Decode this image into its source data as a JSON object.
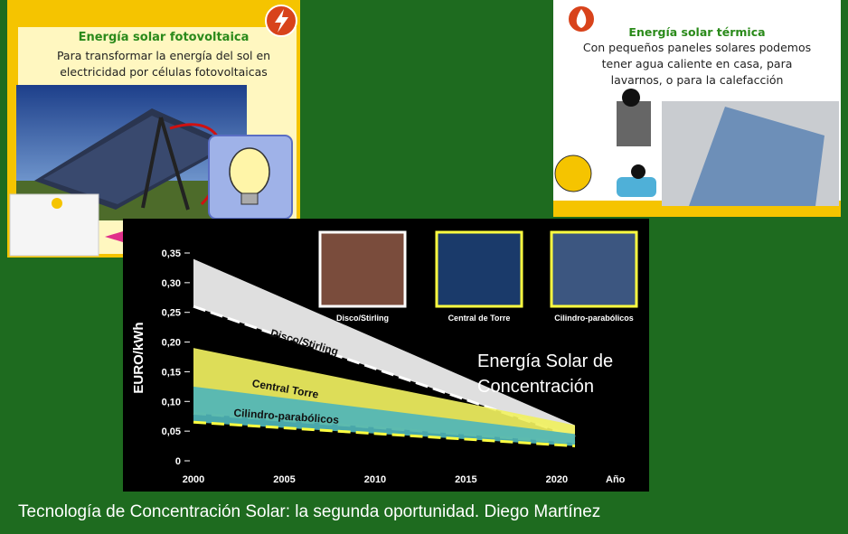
{
  "photovoltaic": {
    "title": "Energía solar fotovoltaica",
    "line1": "Para transformar la energía del sol en",
    "line2": "electricidad  por células fotovoltaicas",
    "icon": "lightning-icon"
  },
  "thermal": {
    "title": "Energía solar térmica",
    "line1": "Con pequeños paneles solares podemos",
    "line2": "tener agua caliente en casa, para",
    "line3": "lavarnos, o para la calefacción",
    "icon": "flame-icon"
  },
  "chart_data": {
    "type": "area",
    "ylabel": "EURO/kWh",
    "xlabel": "Año",
    "x_ticks": [
      "2000",
      "2005",
      "2010",
      "2015",
      "2020"
    ],
    "y_ticks": [
      "0",
      "0,05",
      "0,10",
      "0,15",
      "0,20",
      "0,25",
      "0,30",
      "0,35"
    ],
    "xlim": [
      2000,
      2021
    ],
    "ylim": [
      0,
      0.35
    ],
    "annotation_line1": "Energía Solar de",
    "annotation_line2": "Concentración",
    "thumbnails": [
      "Disco/Stirling",
      "Central de Torre",
      "Cilindro-parabólicos"
    ],
    "series": [
      {
        "name": "Disco/Stirling",
        "color": "#f2f2f2",
        "x": [
          2000,
          2021
        ],
        "upper": [
          0.34,
          0.06
        ],
        "lower": [
          0.26,
          0.04
        ]
      },
      {
        "name": "Central Torre",
        "color": "#f0f060",
        "x": [
          2000,
          2021
        ],
        "upper": [
          0.19,
          0.06
        ],
        "lower": [
          0.08,
          0.03
        ]
      },
      {
        "name": "Cilindro-parabólicos",
        "color": "#4fb5b8",
        "x": [
          2000,
          2021
        ],
        "upper": [
          0.125,
          0.045
        ],
        "lower": [
          0.065,
          0.025
        ]
      }
    ]
  },
  "caption": "Tecnología de Concentración Solar: la segunda oportunidad. Diego Martínez"
}
